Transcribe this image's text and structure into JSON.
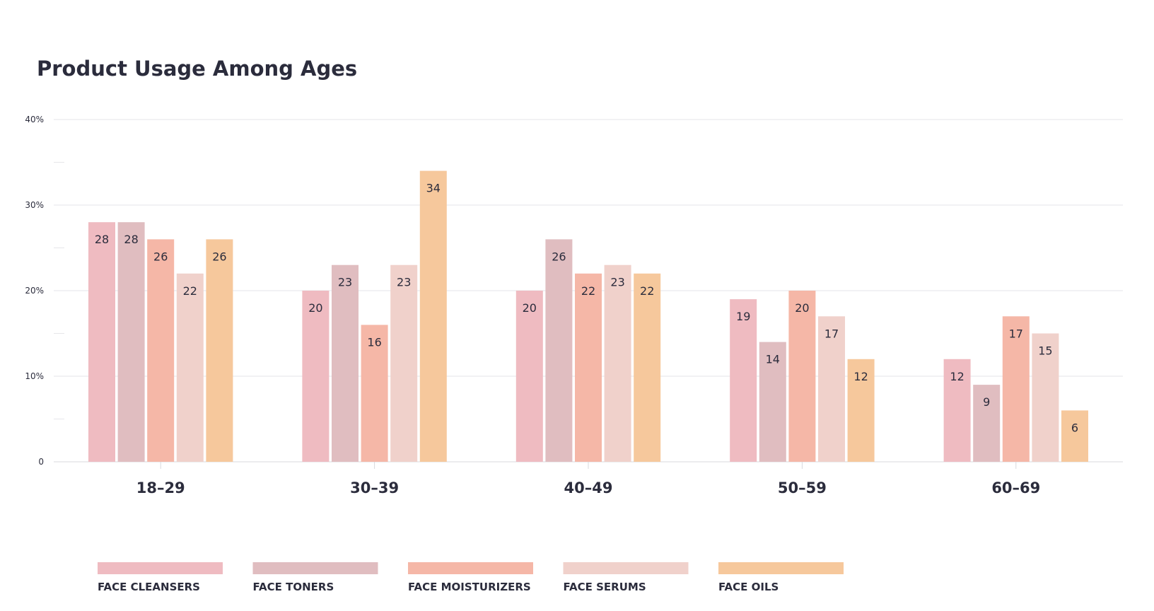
{
  "chart_data": {
    "type": "bar",
    "title": "Product Usage Among Ages",
    "xlabel": "",
    "ylabel": "",
    "categories": [
      "18–29",
      "30–39",
      "40–49",
      "50–59",
      "60–69"
    ],
    "series": [
      {
        "name": "FACE CLEANSERS",
        "color": "#efbbc1",
        "values": [
          28,
          20,
          20,
          19,
          12
        ]
      },
      {
        "name": "FACE TONERS",
        "color": "#e0bdc0",
        "values": [
          28,
          23,
          26,
          14,
          9
        ]
      },
      {
        "name": "FACE MOISTURIZERS",
        "color": "#f5b7a7",
        "values": [
          26,
          16,
          22,
          20,
          17
        ]
      },
      {
        "name": "FACE SERUMS",
        "color": "#f0d1cb",
        "values": [
          22,
          23,
          23,
          17,
          15
        ]
      },
      {
        "name": "FACE OILS",
        "color": "#f6c89c",
        "values": [
          26,
          34,
          22,
          12,
          6
        ]
      }
    ],
    "ylim": [
      0,
      40
    ],
    "yticks": [
      {
        "value": 0,
        "label": "0"
      },
      {
        "value": 10,
        "label": "10%"
      },
      {
        "value": 20,
        "label": "20%"
      },
      {
        "value": 30,
        "label": "30%"
      },
      {
        "value": 40,
        "label": "40%"
      }
    ],
    "grid": true,
    "legend": "bottom-left",
    "data_labels": true
  }
}
